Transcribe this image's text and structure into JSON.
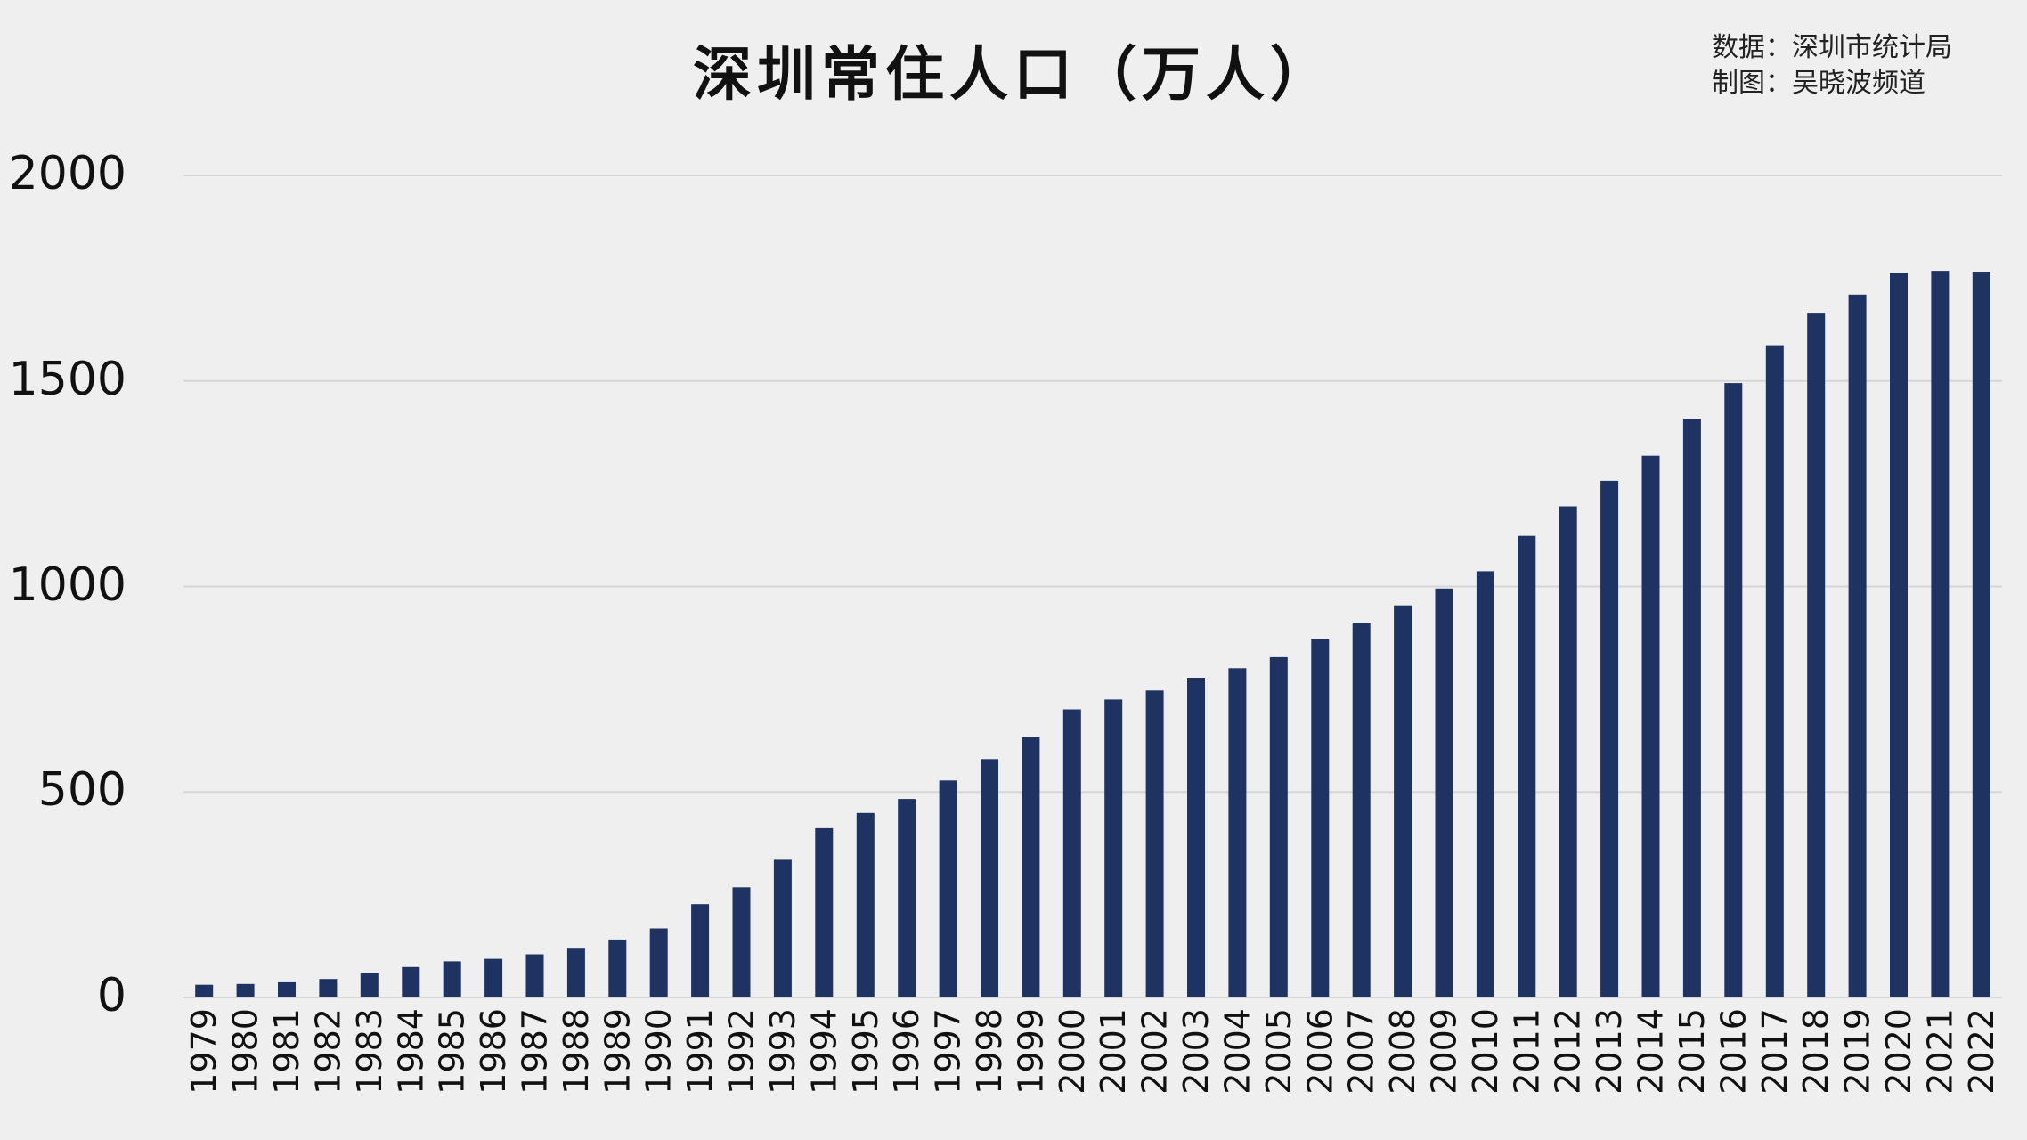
{
  "title": "深圳常住人口（万人）",
  "source": {
    "data_line": "数据：深圳市统计局",
    "credit_line": "制图：吴晓波频道"
  },
  "colors": {
    "background": "#efefef",
    "bar": "#1e3361",
    "grid": "#d6d6d6",
    "text": "#111111"
  },
  "chart_data": {
    "type": "bar",
    "title": "深圳常住人口（万人）",
    "xlabel": "",
    "ylabel": "",
    "ylim": [
      0,
      2000
    ],
    "yticks": [
      0,
      500,
      1000,
      1500,
      2000
    ],
    "grid": true,
    "legend": "none",
    "categories": [
      "1979",
      "1980",
      "1981",
      "1982",
      "1983",
      "1984",
      "1985",
      "1986",
      "1987",
      "1988",
      "1989",
      "1990",
      "1991",
      "1992",
      "1993",
      "1994",
      "1995",
      "1996",
      "1997",
      "1998",
      "1999",
      "2000",
      "2001",
      "2002",
      "2003",
      "2004",
      "2005",
      "2006",
      "2007",
      "2008",
      "2009",
      "2010",
      "2011",
      "2012",
      "2013",
      "2014",
      "2015",
      "2016",
      "2017",
      "2018",
      "2019",
      "2020",
      "2021",
      "2022"
    ],
    "values": [
      31,
      33,
      37,
      45,
      60,
      74,
      88,
      94,
      105,
      121,
      141,
      168,
      227,
      268,
      335,
      412,
      449,
      483,
      528,
      580,
      633,
      701,
      725,
      747,
      778,
      801,
      828,
      871,
      912,
      954,
      995,
      1037,
      1123,
      1195,
      1257,
      1318,
      1408,
      1495,
      1587,
      1666,
      1710,
      1763,
      1768,
      1766
    ]
  }
}
